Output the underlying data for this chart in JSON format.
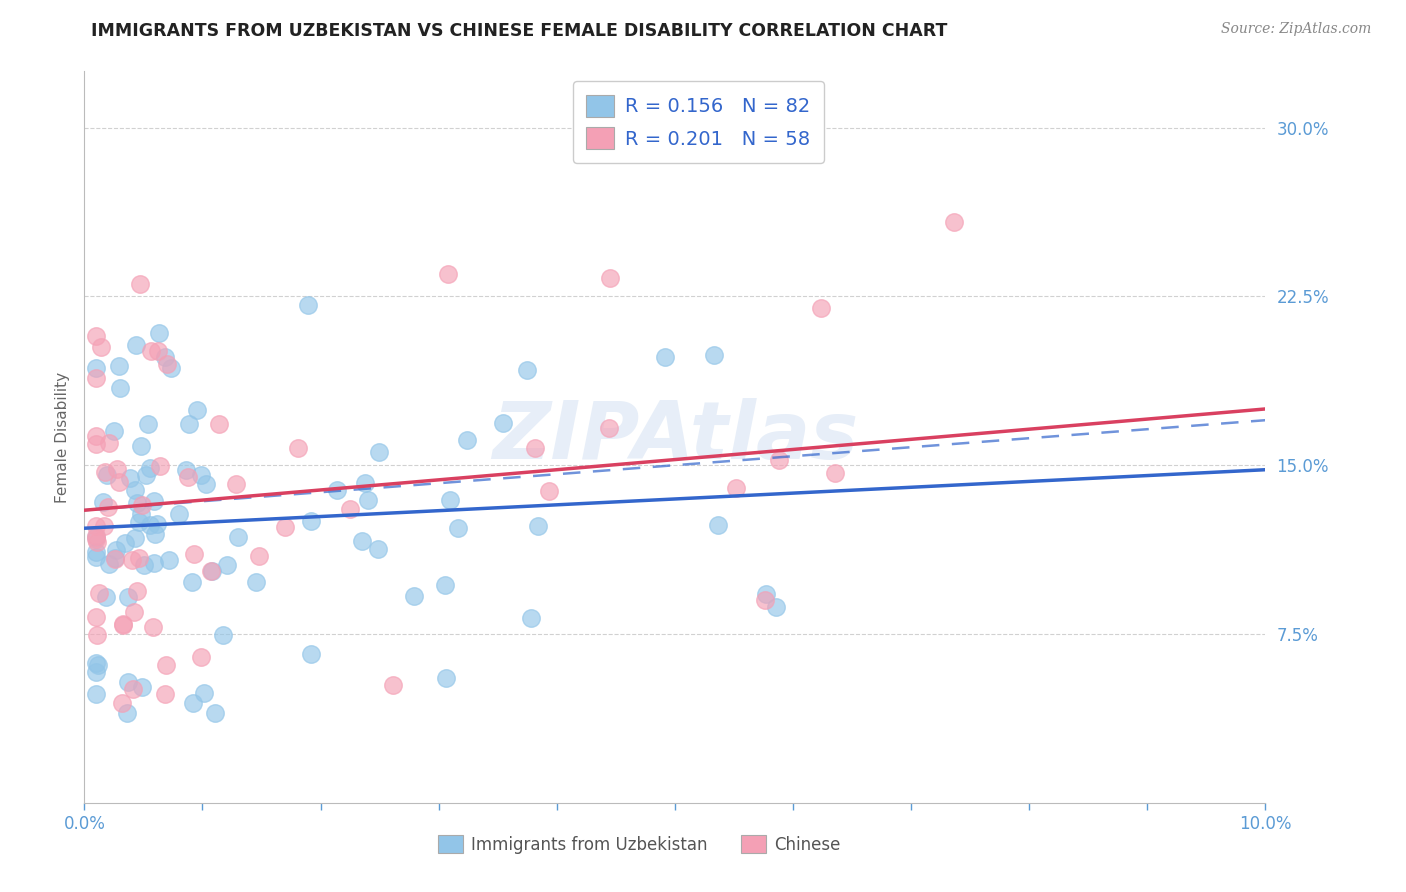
{
  "title": "IMMIGRANTS FROM UZBEKISTAN VS CHINESE FEMALE DISABILITY CORRELATION CHART",
  "source": "Source: ZipAtlas.com",
  "ylabel": "Female Disability",
  "xlim": [
    0.0,
    0.1
  ],
  "ylim": [
    0.0,
    0.325
  ],
  "yticks": [
    0.075,
    0.15,
    0.225,
    0.3
  ],
  "xticks_minor": [
    0.01,
    0.02,
    0.03,
    0.04,
    0.05,
    0.06,
    0.07,
    0.08,
    0.09
  ],
  "xticks_labeled": [
    0.0,
    0.1
  ],
  "series1_label": "Immigrants from Uzbekistan",
  "series1_R": "0.156",
  "series1_N": "82",
  "series1_color": "#92C5E8",
  "series1_line_color": "#3366CC",
  "series2_label": "Chinese",
  "series2_R": "0.201",
  "series2_N": "58",
  "series2_color": "#F4A0B5",
  "series2_line_color": "#D94060",
  "r_text_color": "#3366CC",
  "n_text_color": "#D94060",
  "watermark": "ZIPAtlas",
  "background_color": "#FFFFFF",
  "grid_color": "#CCCCCC",
  "axis_label_color": "#5B9BD5",
  "title_color": "#222222",
  "trendline1_x0": 0.0,
  "trendline1_y0": 0.122,
  "trendline1_x1": 0.1,
  "trendline1_y1": 0.148,
  "trendline_dashed_x0": 0.0,
  "trendline_dashed_y0": 0.13,
  "trendline_dashed_x1": 0.1,
  "trendline_dashed_y1": 0.17,
  "trendline2_x0": 0.0,
  "trendline2_y0": 0.13,
  "trendline2_x1": 0.1,
  "trendline2_y1": 0.175
}
